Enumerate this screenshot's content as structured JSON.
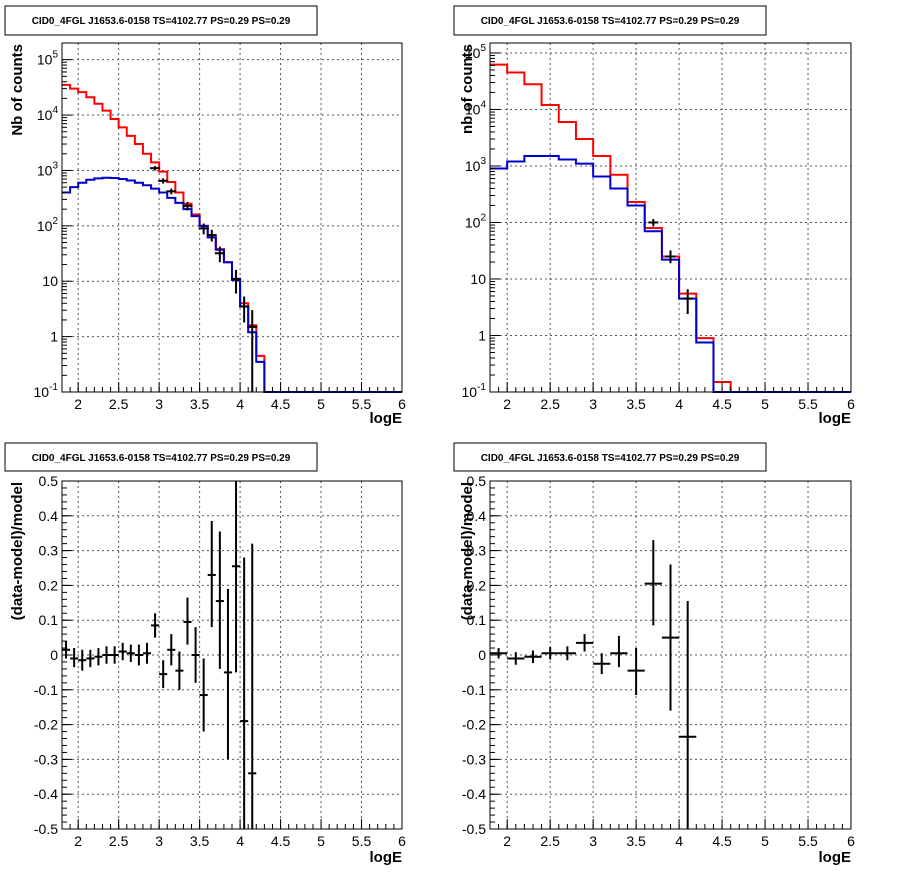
{
  "chart_data": [
    {
      "type": "histogram",
      "title": "CID0_4FGL J1653.6-0158 TS=4102.77 PS=0.29 PS=0.29",
      "xlabel": "logE",
      "ylabel": "Nb of counts",
      "xlim": [
        1.8,
        6.0
      ],
      "ylim": [
        0.1,
        200000
      ],
      "yscale": "log",
      "grid": true,
      "x_ticks": [
        "2",
        "2.5",
        "3",
        "3.5",
        "4",
        "4.5",
        "5",
        "5.5",
        "6"
      ],
      "y_ticks": [
        "10^-1",
        "1",
        "10",
        "10^2",
        "10^3",
        "10^4",
        "10^5"
      ],
      "bin_edges": [
        1.8,
        1.9,
        2.0,
        2.1,
        2.2,
        2.3,
        2.4,
        2.5,
        2.6,
        2.7,
        2.8,
        2.9,
        3.0,
        3.1,
        3.2,
        3.3,
        3.4,
        3.5,
        3.6,
        3.7,
        3.8,
        3.9,
        4.0,
        4.1,
        4.2,
        4.3,
        4.4,
        4.5,
        4.6,
        4.7,
        4.8,
        4.9,
        5.0,
        5.1,
        5.2,
        5.3,
        5.4,
        5.5,
        5.6,
        5.7,
        5.8,
        5.9,
        6.0
      ],
      "series": [
        {
          "color": "#ff0000",
          "values": [
            35000,
            30000,
            26000,
            21000,
            16000,
            12000,
            8500,
            6000,
            4200,
            3000,
            2000,
            1400,
            950,
            620,
            400,
            250,
            160,
            100,
            62,
            38,
            22,
            11,
            4,
            1.6,
            0.45,
            0.1,
            0.1,
            0.1,
            0.1,
            0.1,
            0.1,
            0.1,
            0.1,
            0.1,
            0.1,
            0.1,
            0.1,
            0.1,
            0.1,
            0.1,
            0.1,
            0.1
          ]
        },
        {
          "color": "#0000cc",
          "values": [
            400,
            500,
            600,
            680,
            720,
            740,
            730,
            700,
            660,
            600,
            540,
            470,
            400,
            320,
            260,
            200,
            150,
            100,
            62,
            37,
            22,
            10.5,
            3.5,
            1.2,
            0.35,
            0.1,
            0.1,
            0.1,
            0.1,
            0.1,
            0.1,
            0.1,
            0.1,
            0.1,
            0.1,
            0.1,
            0.1,
            0.1,
            0.1,
            0.1,
            0.1,
            0.1
          ]
        }
      ],
      "data_points": [
        {
          "x": 2.95,
          "y": 1100,
          "lo": 1000,
          "hi": 1200
        },
        {
          "x": 3.05,
          "y": 650,
          "lo": 580,
          "hi": 720
        },
        {
          "x": 3.15,
          "y": 420,
          "lo": 370,
          "hi": 470
        },
        {
          "x": 3.35,
          "y": 230,
          "lo": 190,
          "hi": 270
        },
        {
          "x": 3.55,
          "y": 90,
          "lo": 70,
          "hi": 110
        },
        {
          "x": 3.65,
          "y": 68,
          "lo": 52,
          "hi": 85
        },
        {
          "x": 3.75,
          "y": 32,
          "lo": 22,
          "hi": 42
        },
        {
          "x": 3.95,
          "y": 11,
          "lo": 6,
          "hi": 16
        },
        {
          "x": 4.05,
          "y": 3.5,
          "lo": 1.8,
          "hi": 5.3
        },
        {
          "x": 4.15,
          "y": 1.5,
          "lo": 0.1,
          "hi": 3
        }
      ]
    },
    {
      "type": "histogram",
      "title": "CID0_4FGL J1653.6-0158 TS=4102.77 PS=0.29 PS=0.29",
      "xlabel": "logE",
      "ylabel": "nb of counts",
      "xlim": [
        1.8,
        6.0
      ],
      "ylim": [
        0.1,
        150000
      ],
      "yscale": "log",
      "grid": true,
      "x_ticks": [
        "2",
        "2.5",
        "3",
        "3.5",
        "4",
        "4.5",
        "5",
        "5.5",
        "6"
      ],
      "y_ticks": [
        "10^-1",
        "1",
        "10",
        "10^2",
        "10^3",
        "10^4",
        "10^5"
      ],
      "bin_edges": [
        1.8,
        2.0,
        2.2,
        2.4,
        2.6,
        2.8,
        3.0,
        3.2,
        3.4,
        3.6,
        3.8,
        4.0,
        4.2,
        4.4,
        4.6,
        4.8,
        5.0,
        5.2,
        5.4,
        5.6,
        5.8,
        6.0
      ],
      "series": [
        {
          "color": "#ff0000",
          "values": [
            62000,
            45000,
            28000,
            12000,
            6000,
            3000,
            1500,
            700,
            230,
            80,
            25,
            5.5,
            0.9,
            0.15,
            0.1,
            0.1,
            0.1,
            0.1,
            0.1,
            0.1,
            0.1
          ]
        },
        {
          "color": "#0000cc",
          "values": [
            900,
            1200,
            1500,
            1500,
            1300,
            1100,
            650,
            400,
            200,
            70,
            22,
            4.5,
            0.75,
            0.1,
            0.1,
            0.1,
            0.1,
            0.1,
            0.1,
            0.1,
            0.1
          ]
        }
      ],
      "data_points": [
        {
          "x": 3.7,
          "y": 100,
          "lo": 85,
          "hi": 115
        },
        {
          "x": 3.9,
          "y": 25,
          "lo": 19,
          "hi": 32
        },
        {
          "x": 4.1,
          "y": 4.5,
          "lo": 2.4,
          "hi": 6.6
        }
      ]
    },
    {
      "type": "scatter",
      "title": "CID0_4FGL J1653.6-0158 TS=4102.77 PS=0.29 PS=0.29",
      "xlabel": "logE",
      "ylabel": "(data-model)/model",
      "xlim": [
        1.8,
        6.0
      ],
      "ylim": [
        -0.5,
        0.5
      ],
      "grid": true,
      "x_ticks": [
        "2",
        "2.5",
        "3",
        "3.5",
        "4",
        "4.5",
        "5",
        "5.5",
        "6"
      ],
      "y_ticks": [
        "-0.5",
        "-0.4",
        "-0.3",
        "-0.2",
        "-0.1",
        "0",
        "0.1",
        "0.2",
        "0.3",
        "0.4",
        "0.5"
      ],
      "xerr": 0.05,
      "points": [
        {
          "x": 1.85,
          "y": 0.015,
          "lo": -0.01,
          "hi": 0.04
        },
        {
          "x": 1.95,
          "y": -0.01,
          "lo": -0.035,
          "hi": 0.02
        },
        {
          "x": 2.05,
          "y": -0.015,
          "lo": -0.045,
          "hi": 0.015
        },
        {
          "x": 2.15,
          "y": -0.01,
          "lo": -0.035,
          "hi": 0.015
        },
        {
          "x": 2.25,
          "y": -0.005,
          "lo": -0.03,
          "hi": 0.02
        },
        {
          "x": 2.35,
          "y": 0.0,
          "lo": -0.025,
          "hi": 0.025
        },
        {
          "x": 2.45,
          "y": 0.0,
          "lo": -0.025,
          "hi": 0.025
        },
        {
          "x": 2.55,
          "y": 0.01,
          "lo": -0.015,
          "hi": 0.035
        },
        {
          "x": 2.65,
          "y": 0.005,
          "lo": -0.02,
          "hi": 0.03
        },
        {
          "x": 2.75,
          "y": 0.0,
          "lo": -0.03,
          "hi": 0.03
        },
        {
          "x": 2.85,
          "y": 0.005,
          "lo": -0.025,
          "hi": 0.035
        },
        {
          "x": 2.95,
          "y": 0.085,
          "lo": 0.05,
          "hi": 0.12
        },
        {
          "x": 3.05,
          "y": -0.055,
          "lo": -0.095,
          "hi": -0.015
        },
        {
          "x": 3.15,
          "y": 0.015,
          "lo": -0.03,
          "hi": 0.06
        },
        {
          "x": 3.25,
          "y": -0.045,
          "lo": -0.1,
          "hi": 0.01
        },
        {
          "x": 3.35,
          "y": 0.095,
          "lo": 0.03,
          "hi": 0.165
        },
        {
          "x": 3.45,
          "y": 0.0,
          "lo": -0.08,
          "hi": 0.08
        },
        {
          "x": 3.55,
          "y": -0.115,
          "lo": -0.22,
          "hi": -0.01
        },
        {
          "x": 3.65,
          "y": 0.23,
          "lo": 0.08,
          "hi": 0.385
        },
        {
          "x": 3.75,
          "y": 0.155,
          "lo": -0.04,
          "hi": 0.355
        },
        {
          "x": 3.85,
          "y": -0.05,
          "lo": -0.3,
          "hi": 0.19
        },
        {
          "x": 3.95,
          "y": 0.255,
          "lo": -0.05,
          "hi": 0.5
        },
        {
          "x": 4.05,
          "y": -0.19,
          "lo": -0.5,
          "hi": 0.28
        },
        {
          "x": 4.15,
          "y": -0.34,
          "lo": -0.5,
          "hi": 0.32
        }
      ]
    },
    {
      "type": "scatter",
      "title": "CID0_4FGL J1653.6-0158 TS=4102.77 PS=0.29 PS=0.29",
      "xlabel": "logE",
      "ylabel": "(data-model)/model",
      "xlim": [
        1.8,
        6.0
      ],
      "ylim": [
        -0.5,
        0.5
      ],
      "grid": true,
      "x_ticks": [
        "2",
        "2.5",
        "3",
        "3.5",
        "4",
        "4.5",
        "5",
        "5.5",
        "6"
      ],
      "y_ticks": [
        "-0.5",
        "-0.4",
        "-0.3",
        "-0.2",
        "-0.1",
        "0",
        "0.1",
        "0.2",
        "0.3",
        "0.4",
        "0.5"
      ],
      "xerr": 0.1,
      "points": [
        {
          "x": 1.9,
          "y": 0.005,
          "lo": -0.01,
          "hi": 0.02
        },
        {
          "x": 2.1,
          "y": -0.01,
          "lo": -0.028,
          "hi": 0.008
        },
        {
          "x": 2.3,
          "y": -0.005,
          "lo": -0.023,
          "hi": 0.013
        },
        {
          "x": 2.5,
          "y": 0.005,
          "lo": -0.013,
          "hi": 0.023
        },
        {
          "x": 2.7,
          "y": 0.005,
          "lo": -0.015,
          "hi": 0.025
        },
        {
          "x": 2.9,
          "y": 0.035,
          "lo": 0.01,
          "hi": 0.06
        },
        {
          "x": 3.1,
          "y": -0.025,
          "lo": -0.055,
          "hi": 0.005
        },
        {
          "x": 3.3,
          "y": 0.005,
          "lo": -0.035,
          "hi": 0.055
        },
        {
          "x": 3.5,
          "y": -0.045,
          "lo": -0.115,
          "hi": 0.02
        },
        {
          "x": 3.7,
          "y": 0.205,
          "lo": 0.085,
          "hi": 0.33
        },
        {
          "x": 3.9,
          "y": 0.05,
          "lo": -0.16,
          "hi": 0.26
        },
        {
          "x": 4.1,
          "y": -0.235,
          "lo": -0.5,
          "hi": 0.155
        }
      ]
    }
  ]
}
